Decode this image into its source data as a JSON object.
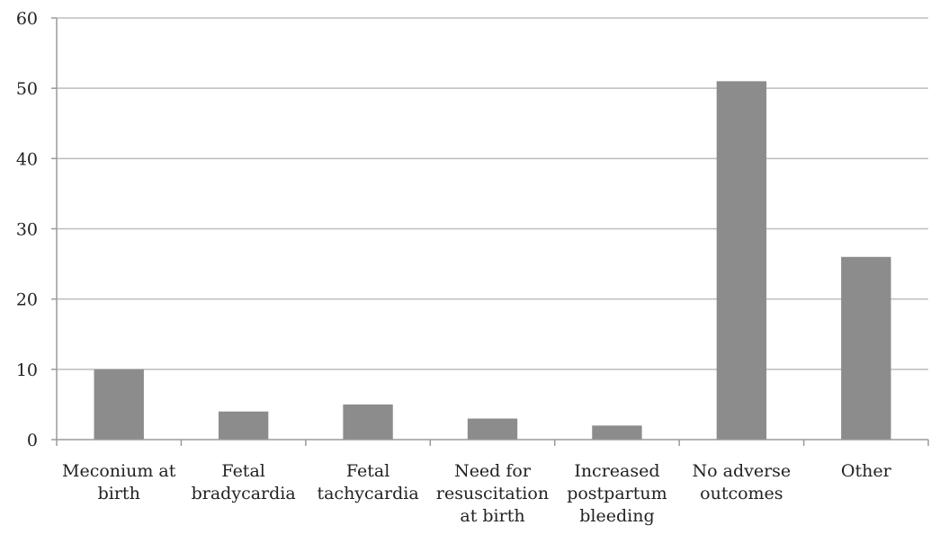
{
  "chart_data": {
    "type": "bar",
    "categories": [
      [
        "Meconium at",
        "birth"
      ],
      [
        "Fetal",
        "bradycardia"
      ],
      [
        "Fetal",
        "tachycardia"
      ],
      [
        "Need for",
        "resuscitation",
        "at birth"
      ],
      [
        "Increased",
        "postpartum",
        "bleeding"
      ],
      [
        "No adverse",
        "outcomes"
      ],
      [
        "Other"
      ]
    ],
    "values": [
      10,
      4,
      5,
      3,
      2,
      51,
      26
    ],
    "title": "",
    "xlabel": "",
    "ylabel": "",
    "ylim": [
      0,
      60
    ],
    "yticks": [
      0,
      10,
      20,
      30,
      40,
      50,
      60
    ],
    "grid": true,
    "legend": "none",
    "colors": {
      "bar": "#8c8c8c",
      "grid": "#bdbdbd",
      "axis": "#9a9a9a"
    }
  }
}
